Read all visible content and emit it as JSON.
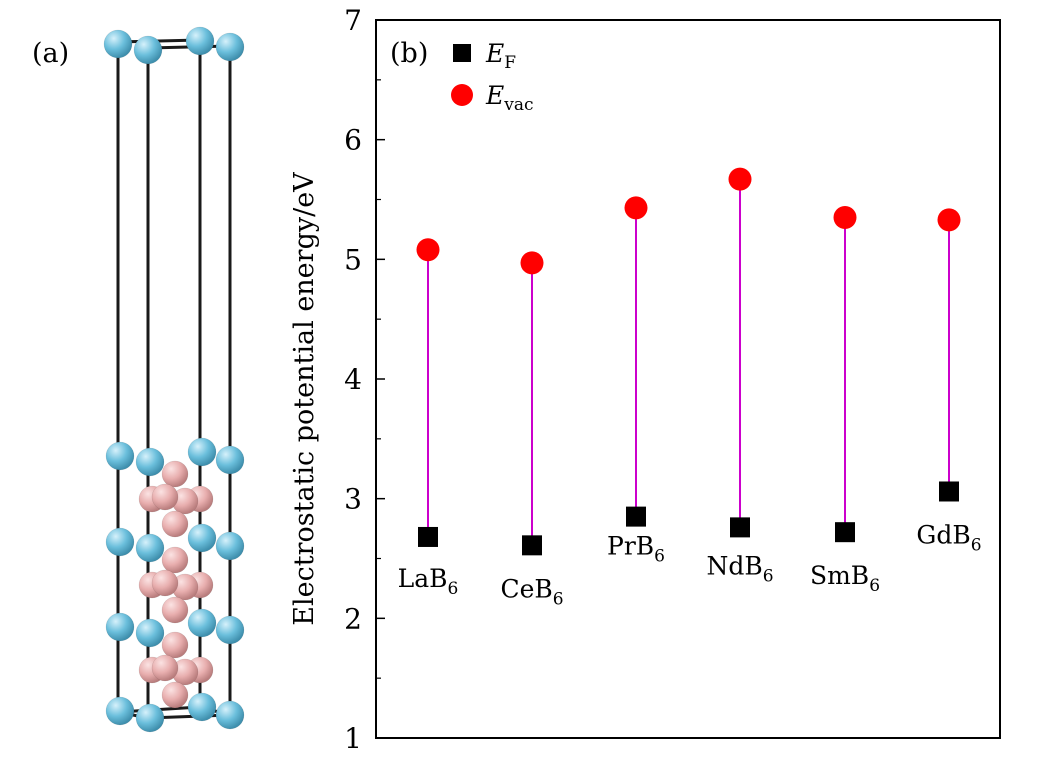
{
  "panel_a": {
    "label": "(a)",
    "colors": {
      "la_atom": "#6bbfdc",
      "b_atom": "#e8aeae",
      "frame": "#1a1a1a"
    }
  },
  "chart_data": {
    "type": "scatter",
    "panel_label": "(b)",
    "ylabel": "Electrostatic potential energy/eV",
    "xlabel": "",
    "ylim": [
      1,
      7
    ],
    "yticks": [
      1,
      2,
      3,
      4,
      5,
      6,
      7
    ],
    "categories": [
      {
        "base": "LaB",
        "sub": "6"
      },
      {
        "base": "CeB",
        "sub": "6"
      },
      {
        "base": "PrB",
        "sub": "6"
      },
      {
        "base": "NdB",
        "sub": "6"
      },
      {
        "base": "SmB",
        "sub": "6"
      },
      {
        "base": "GdB",
        "sub": "6"
      }
    ],
    "series": [
      {
        "name": "E_F",
        "legend_main": "E",
        "legend_sub": "F",
        "marker": "square",
        "color": "#000000",
        "values": [
          2.68,
          2.61,
          2.85,
          2.76,
          2.72,
          3.06
        ]
      },
      {
        "name": "E_vac",
        "legend_main": "E",
        "legend_sub": "vac",
        "marker": "circle",
        "color": "#ff0000",
        "values": [
          5.08,
          4.97,
          5.43,
          5.67,
          5.35,
          5.33
        ]
      }
    ],
    "connector_color": "#cc00cc",
    "legend_position": "top-left"
  }
}
